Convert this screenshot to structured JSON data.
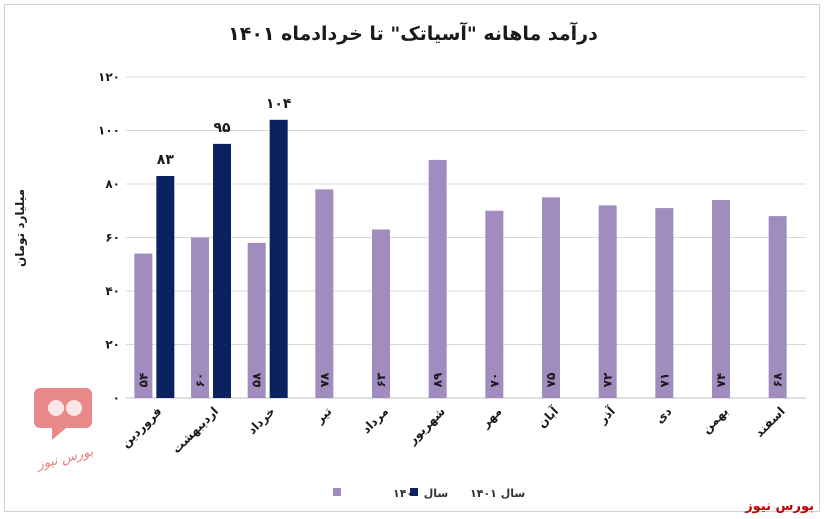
{
  "chart_data": {
    "type": "bar",
    "title": "درآمد ماهانه \"آسیاتک\" تا خردادماه ۱۴۰۱",
    "ylabel": "میلیارد تومان",
    "xlabel": "",
    "ylim": [
      0,
      120
    ],
    "yticks": [
      0,
      20,
      40,
      60,
      80,
      100,
      120
    ],
    "ytick_labels": [
      "۰",
      "۲۰",
      "۴۰",
      "۶۰",
      "۸۰",
      "۱۰۰",
      "۱۲۰"
    ],
    "grid": true,
    "legend_position": "bottom",
    "categories": [
      "فروردین",
      "اردیبهشت",
      "خرداد",
      "تیر",
      "مرداد",
      "شهریور",
      "مهر",
      "آبان",
      "آذر",
      "دی",
      "بهمن",
      "اسفند"
    ],
    "series": [
      {
        "name": "سال ۱۴۰۰",
        "color": "#a08cbf",
        "values": [
          54,
          60,
          58,
          78,
          63,
          89,
          70,
          75,
          72,
          71,
          74,
          68
        ],
        "labels": [
          "۵۴",
          "۶۰",
          "۵۸",
          "۷۸",
          "۶۳",
          "۸۹",
          "۷۰",
          "۷۵",
          "۷۲",
          "۷۱",
          "۷۴",
          "۶۸"
        ]
      },
      {
        "name": "سال ۱۴۰۱",
        "color": "#0b2260",
        "values": [
          83,
          95,
          104,
          null,
          null,
          null,
          null,
          null,
          null,
          null,
          null,
          null
        ],
        "labels": [
          "۸۳",
          "۹۵",
          "۱۰۴",
          null,
          null,
          null,
          null,
          null,
          null,
          null,
          null,
          null
        ]
      }
    ]
  },
  "credit": "بورس نیوز",
  "watermark_text": "بورس نیوز"
}
